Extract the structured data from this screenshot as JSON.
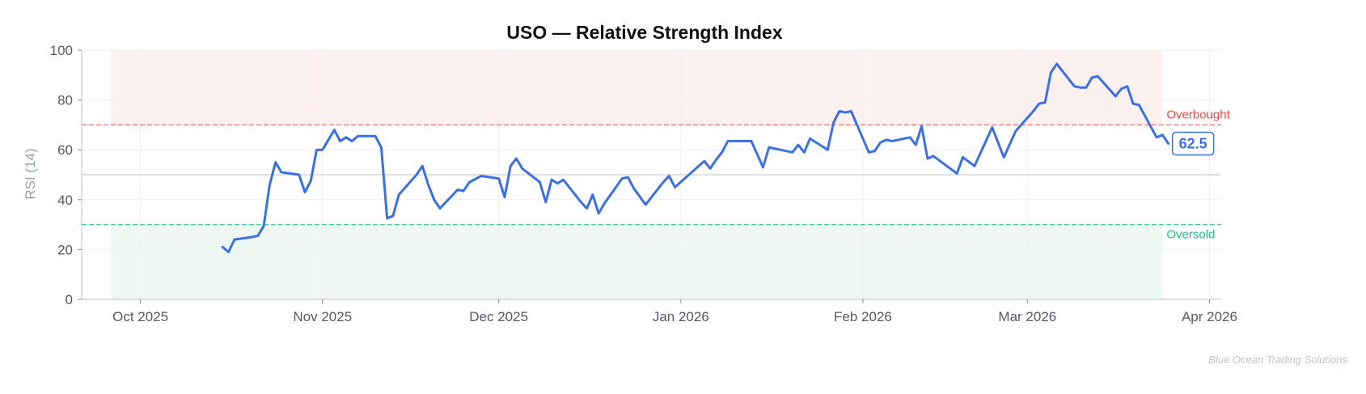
{
  "chart_data": {
    "type": "line",
    "title": "USO — Relative Strength Index",
    "ylabel": "RSI (14)",
    "xlabel": "",
    "ylim": [
      0,
      100
    ],
    "xlim": [
      "2025-09-21",
      "2026-04-03"
    ],
    "grid": true,
    "yticks": [
      0,
      20,
      40,
      60,
      80,
      100
    ],
    "xticks": [
      {
        "date": "2025-10-01",
        "label": "Oct 2025"
      },
      {
        "date": "2025-11-01",
        "label": "Nov 2025"
      },
      {
        "date": "2025-12-01",
        "label": "Dec 2025"
      },
      {
        "date": "2026-01-01",
        "label": "Jan 2026"
      },
      {
        "date": "2026-02-01",
        "label": "Feb 2026"
      },
      {
        "date": "2026-03-01",
        "label": "Mar 2026"
      },
      {
        "date": "2026-04-01",
        "label": "Apr 2026"
      }
    ],
    "bands": {
      "overbought": {
        "level": 70,
        "label": "Overbought",
        "color": "#e84a4a",
        "fill": "#fdf1f0",
        "x_from": "2025-09-26",
        "x_to": "2026-03-24"
      },
      "oversold": {
        "level": 30,
        "label": "Oversold",
        "color": "#26b981",
        "fill": "#eef8f3",
        "x_from": "2025-09-26",
        "x_to": "2026-03-24"
      },
      "midline": {
        "level": 50,
        "color": "#d9d9d9"
      }
    },
    "series": [
      {
        "color": "#3b6fe6",
        "last_value_label": "62.5",
        "points": [
          [
            "2025-10-15",
            21
          ],
          [
            "2025-10-16",
            19
          ],
          [
            "2025-10-17",
            24
          ],
          [
            "2025-10-20",
            25
          ],
          [
            "2025-10-21",
            25.5
          ],
          [
            "2025-10-22",
            29.5
          ],
          [
            "2025-10-23",
            46
          ],
          [
            "2025-10-24",
            55
          ],
          [
            "2025-10-25",
            51
          ],
          [
            "2025-10-28",
            50
          ],
          [
            "2025-10-29",
            43
          ],
          [
            "2025-10-30",
            47.5
          ],
          [
            "2025-10-31",
            60
          ],
          [
            "2025-11-01",
            60
          ],
          [
            "2025-11-03",
            68
          ],
          [
            "2025-11-04",
            63.5
          ],
          [
            "2025-11-05",
            65
          ],
          [
            "2025-11-06",
            63.5
          ],
          [
            "2025-11-07",
            65.5
          ],
          [
            "2025-11-10",
            65.5
          ],
          [
            "2025-11-11",
            61
          ],
          [
            "2025-11-12",
            32.5
          ],
          [
            "2025-11-13",
            33.5
          ],
          [
            "2025-11-14",
            42
          ],
          [
            "2025-11-17",
            50
          ],
          [
            "2025-11-18",
            53.5
          ],
          [
            "2025-11-19",
            46
          ],
          [
            "2025-11-20",
            40
          ],
          [
            "2025-11-21",
            36.5
          ],
          [
            "2025-11-24",
            44
          ],
          [
            "2025-11-25",
            43.5
          ],
          [
            "2025-11-26",
            47
          ],
          [
            "2025-11-28",
            49.5
          ],
          [
            "2025-12-01",
            48.5
          ],
          [
            "2025-12-02",
            41
          ],
          [
            "2025-12-03",
            53.5
          ],
          [
            "2025-12-04",
            56.5
          ],
          [
            "2025-12-05",
            52.5
          ],
          [
            "2025-12-08",
            47
          ],
          [
            "2025-12-09",
            39
          ],
          [
            "2025-12-10",
            48
          ],
          [
            "2025-12-11",
            46.5
          ],
          [
            "2025-12-12",
            48
          ],
          [
            "2025-12-15",
            39
          ],
          [
            "2025-12-16",
            36.5
          ],
          [
            "2025-12-17",
            42
          ],
          [
            "2025-12-18",
            34.5
          ],
          [
            "2025-12-19",
            38.5
          ],
          [
            "2025-12-22",
            48.5
          ],
          [
            "2025-12-23",
            49
          ],
          [
            "2025-12-24",
            44.5
          ],
          [
            "2025-12-26",
            38
          ],
          [
            "2025-12-29",
            47
          ],
          [
            "2025-12-30",
            49.5
          ],
          [
            "2025-12-31",
            45
          ],
          [
            "2026-01-05",
            55.5
          ],
          [
            "2026-01-06",
            52.5
          ],
          [
            "2026-01-07",
            56
          ],
          [
            "2026-01-08",
            59
          ],
          [
            "2026-01-09",
            63.5
          ],
          [
            "2026-01-12",
            63.5
          ],
          [
            "2026-01-13",
            63.5
          ],
          [
            "2026-01-15",
            53
          ],
          [
            "2026-01-16",
            61
          ],
          [
            "2026-01-20",
            59
          ],
          [
            "2026-01-21",
            62
          ],
          [
            "2026-01-22",
            59
          ],
          [
            "2026-01-23",
            64.5
          ],
          [
            "2026-01-26",
            60
          ],
          [
            "2026-01-27",
            71
          ],
          [
            "2026-01-28",
            75.5
          ],
          [
            "2026-01-29",
            75
          ],
          [
            "2026-01-30",
            75.5
          ],
          [
            "2026-02-02",
            59
          ],
          [
            "2026-02-03",
            59.5
          ],
          [
            "2026-02-04",
            63
          ],
          [
            "2026-02-05",
            64
          ],
          [
            "2026-02-06",
            63.5
          ],
          [
            "2026-02-09",
            65
          ],
          [
            "2026-02-10",
            62
          ],
          [
            "2026-02-11",
            69.5
          ],
          [
            "2026-02-12",
            56.5
          ],
          [
            "2026-02-13",
            57.5
          ],
          [
            "2026-02-17",
            50.5
          ],
          [
            "2026-02-18",
            57
          ],
          [
            "2026-02-20",
            53.5
          ],
          [
            "2026-02-23",
            69
          ],
          [
            "2026-02-25",
            57
          ],
          [
            "2026-02-27",
            67.5
          ],
          [
            "2026-03-02",
            75.5
          ],
          [
            "2026-03-03",
            78.5
          ],
          [
            "2026-03-04",
            79
          ],
          [
            "2026-03-05",
            91
          ],
          [
            "2026-03-06",
            94.5
          ],
          [
            "2026-03-09",
            85.5
          ],
          [
            "2026-03-10",
            85
          ],
          [
            "2026-03-11",
            85
          ],
          [
            "2026-03-12",
            89
          ],
          [
            "2026-03-13",
            89.5
          ],
          [
            "2026-03-16",
            81.5
          ],
          [
            "2026-03-17",
            84.5
          ],
          [
            "2026-03-18",
            85.5
          ],
          [
            "2026-03-19",
            78.5
          ],
          [
            "2026-03-20",
            78
          ],
          [
            "2026-03-23",
            65
          ],
          [
            "2026-03-24",
            66
          ],
          [
            "2026-03-25",
            62.5
          ]
        ]
      }
    ]
  },
  "footer": {
    "watermark": "Blue Ocean Trading Solutions"
  }
}
